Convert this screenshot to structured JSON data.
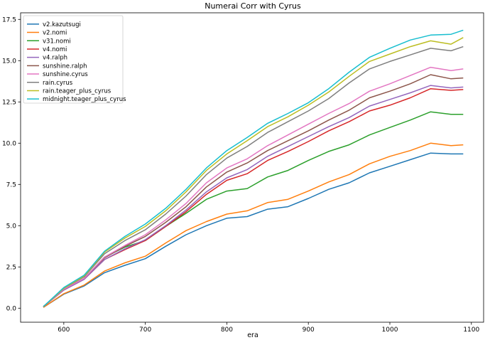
{
  "chart_data": {
    "type": "line",
    "title": "Numerai Corr with Cyrus",
    "xlabel": "era",
    "ylabel": "",
    "xlim": [
      547,
      1115
    ],
    "ylim": [
      -0.85,
      17.9
    ],
    "xticks": [
      600,
      700,
      800,
      900,
      1000,
      1100
    ],
    "yticks": [
      0.0,
      2.5,
      5.0,
      7.5,
      10.0,
      12.5,
      15.0,
      17.5
    ],
    "ytick_labels": [
      "0.0",
      "2.5",
      "5.0",
      "7.5",
      "10.0",
      "12.5",
      "15.0",
      "17.5"
    ],
    "grid": false,
    "legend_position": "upper-left",
    "x": [
      575,
      600,
      625,
      650,
      675,
      700,
      725,
      750,
      775,
      800,
      825,
      850,
      875,
      900,
      925,
      950,
      975,
      1000,
      1025,
      1050,
      1075,
      1090
    ],
    "series": [
      {
        "name": "v2.kazutsugi",
        "color": "#1f77b4",
        "values": [
          0.05,
          0.85,
          1.35,
          2.15,
          2.6,
          3.0,
          3.75,
          4.45,
          5.0,
          5.45,
          5.55,
          6.0,
          6.15,
          6.65,
          7.2,
          7.6,
          8.2,
          8.6,
          9.0,
          9.4,
          9.35,
          9.35
        ]
      },
      {
        "name": "v2.nomi",
        "color": "#ff7f0e",
        "values": [
          0.05,
          0.88,
          1.4,
          2.25,
          2.75,
          3.15,
          3.95,
          4.7,
          5.25,
          5.7,
          5.9,
          6.4,
          6.6,
          7.1,
          7.65,
          8.1,
          8.75,
          9.2,
          9.55,
          10.0,
          9.85,
          9.9
        ]
      },
      {
        "name": "v31.nomi",
        "color": "#2ca02c",
        "values": [
          0.1,
          1.15,
          1.8,
          3.1,
          3.7,
          4.1,
          4.95,
          5.75,
          6.6,
          7.1,
          7.25,
          7.95,
          8.35,
          8.95,
          9.5,
          9.9,
          10.5,
          10.95,
          11.4,
          11.9,
          11.75,
          11.75
        ]
      },
      {
        "name": "v4.nomi",
        "color": "#d62728",
        "values": [
          0.1,
          1.1,
          1.75,
          2.95,
          3.55,
          4.1,
          4.95,
          5.85,
          6.9,
          7.75,
          8.15,
          8.95,
          9.5,
          10.1,
          10.75,
          11.3,
          11.95,
          12.3,
          12.75,
          13.3,
          13.2,
          13.25
        ]
      },
      {
        "name": "v4.ralph",
        "color": "#9467bd",
        "values": [
          0.1,
          1.1,
          1.75,
          2.95,
          3.6,
          4.15,
          5.0,
          5.95,
          7.05,
          7.9,
          8.4,
          9.2,
          9.8,
          10.4,
          11.0,
          11.55,
          12.25,
          12.65,
          13.05,
          13.5,
          13.35,
          13.4
        ]
      },
      {
        "name": "sunshine.ralph",
        "color": "#8c564b",
        "values": [
          0.1,
          1.15,
          1.8,
          3.05,
          3.75,
          4.35,
          5.2,
          6.15,
          7.35,
          8.25,
          8.8,
          9.55,
          10.15,
          10.75,
          11.4,
          12.0,
          12.75,
          13.15,
          13.6,
          14.15,
          13.9,
          13.95
        ]
      },
      {
        "name": "sunshine.cyrus",
        "color": "#e377c2",
        "values": [
          0.1,
          1.15,
          1.8,
          3.1,
          3.8,
          4.45,
          5.35,
          6.35,
          7.6,
          8.5,
          9.05,
          9.85,
          10.5,
          11.15,
          11.8,
          12.4,
          13.15,
          13.6,
          14.1,
          14.6,
          14.4,
          14.5
        ]
      },
      {
        "name": "rain.cyrus",
        "color": "#7f7f7f",
        "values": [
          0.1,
          1.2,
          1.9,
          3.3,
          4.1,
          4.75,
          5.7,
          6.8,
          8.1,
          9.1,
          9.8,
          10.65,
          11.3,
          11.95,
          12.7,
          13.65,
          14.5,
          14.95,
          15.35,
          15.75,
          15.6,
          15.85
        ]
      },
      {
        "name": "rain.teager_plus_cyrus",
        "color": "#bcbd22",
        "values": [
          0.1,
          1.2,
          1.95,
          3.4,
          4.25,
          4.95,
          5.9,
          7.05,
          8.35,
          9.35,
          10.15,
          11.0,
          11.6,
          12.3,
          13.1,
          14.05,
          14.95,
          15.4,
          15.85,
          16.2,
          16.0,
          16.4
        ]
      },
      {
        "name": "midnight.teager_plus_cyrus",
        "color": "#17becf",
        "values": [
          0.1,
          1.25,
          2.0,
          3.45,
          4.35,
          5.1,
          6.05,
          7.2,
          8.5,
          9.55,
          10.35,
          11.2,
          11.8,
          12.45,
          13.3,
          14.3,
          15.2,
          15.75,
          16.25,
          16.55,
          16.6,
          16.85
        ]
      }
    ]
  }
}
